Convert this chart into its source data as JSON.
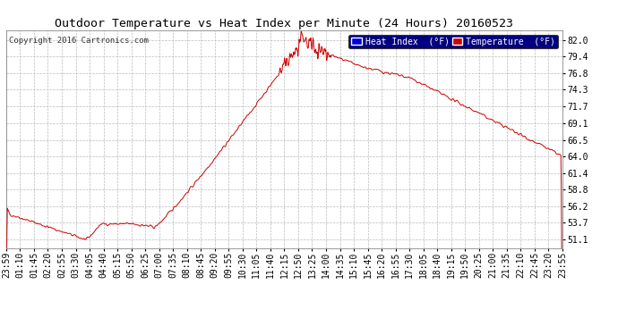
{
  "title": "Outdoor Temperature vs Heat Index per Minute (24 Hours) 20160523",
  "copyright": "Copyright 2016 Cartronics.com",
  "legend_labels": [
    "Heat Index  (°F)",
    "Temperature  (°F)"
  ],
  "legend_bg_color": "#000080",
  "legend_text_color": "#ffffff",
  "legend_patch_colors": [
    "#0000dd",
    "#cc0000"
  ],
  "line_color": "#cc0000",
  "background_color": "#ffffff",
  "plot_bg_color": "#ffffff",
  "yticks": [
    51.1,
    53.7,
    56.2,
    58.8,
    61.4,
    64.0,
    66.5,
    69.1,
    71.7,
    74.3,
    76.8,
    79.4,
    82.0
  ],
  "ylim": [
    49.8,
    83.5
  ],
  "grid_color": "#bbbbbb",
  "title_fontsize": 9.5,
  "tick_fontsize": 7,
  "copyright_fontsize": 6.5,
  "xtick_labels": [
    "23:59",
    "01:10",
    "01:45",
    "02:20",
    "02:55",
    "03:30",
    "04:05",
    "04:40",
    "05:15",
    "05:50",
    "06:25",
    "07:00",
    "07:35",
    "08:10",
    "08:45",
    "09:20",
    "09:55",
    "10:30",
    "11:05",
    "11:40",
    "12:15",
    "12:50",
    "13:25",
    "14:00",
    "14:35",
    "15:10",
    "15:45",
    "16:20",
    "16:55",
    "17:30",
    "18:05",
    "18:40",
    "19:15",
    "19:50",
    "20:25",
    "21:00",
    "21:35",
    "22:10",
    "22:45",
    "23:20",
    "23:55"
  ]
}
